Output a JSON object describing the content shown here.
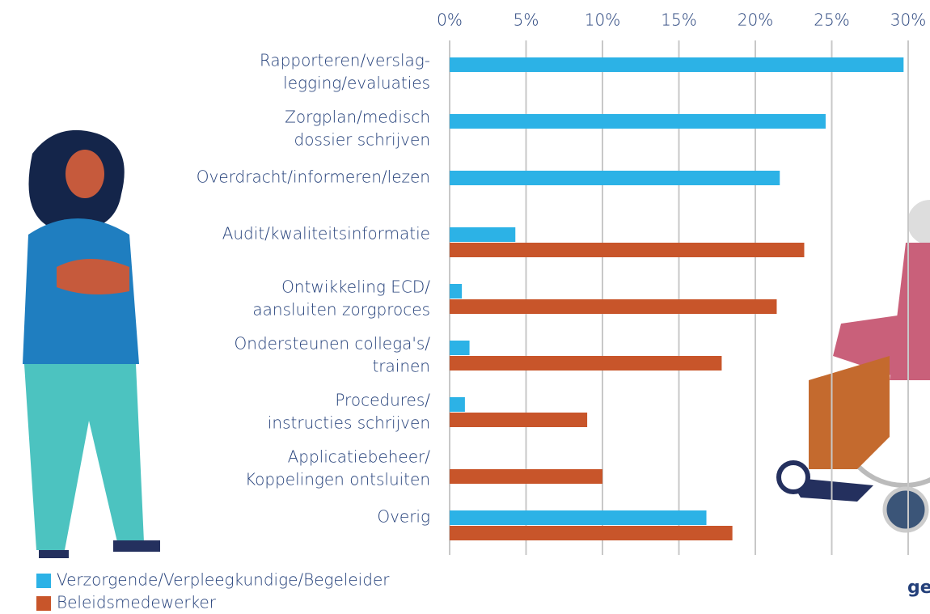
{
  "chart_data": {
    "type": "hbar",
    "categories": [
      [
        "Rapporteren/verslag-",
        "legging/evaluaties"
      ],
      [
        "Zorgplan/medisch",
        "dossier schrijven"
      ],
      [
        "Overdracht/informeren/lezen"
      ],
      [
        "Audit/kwaliteitsinformatie"
      ],
      [
        "Ontwikkeling ECD/",
        "aansluiten zorgproces"
      ],
      [
        "Ondersteunen collega's/",
        "trainen"
      ],
      [
        "Procedures/",
        "instructies schrijven"
      ],
      [
        "Applicatiebeheer/",
        "Koppelingen ontsluiten"
      ],
      [
        "Overig"
      ]
    ],
    "series": [
      {
        "name": "Verzorgende/Verpleegkundige/Begeleider",
        "color": "#2cb2e6",
        "values": [
          29.7,
          24.6,
          21.6,
          4.3,
          0.8,
          1.3,
          1.0,
          null,
          16.8
        ]
      },
      {
        "name": "Beleidsmedewerker",
        "color": "#c8552a",
        "values": [
          null,
          null,
          null,
          23.2,
          21.4,
          17.8,
          9.0,
          10.0,
          18.5
        ]
      }
    ],
    "xlim": [
      0,
      30
    ],
    "xticks": [
      {
        "value": 0,
        "label": "0%"
      },
      {
        "value": 5,
        "label": "5%"
      },
      {
        "value": 10,
        "label": "10%"
      },
      {
        "value": 15,
        "label": "15%"
      },
      {
        "value": 20,
        "label": "20%"
      },
      {
        "value": 25,
        "label": "25%"
      },
      {
        "value": 30,
        "label": "30%"
      }
    ],
    "grid": true,
    "legend": "bottom-left"
  },
  "logo_text": "ge"
}
